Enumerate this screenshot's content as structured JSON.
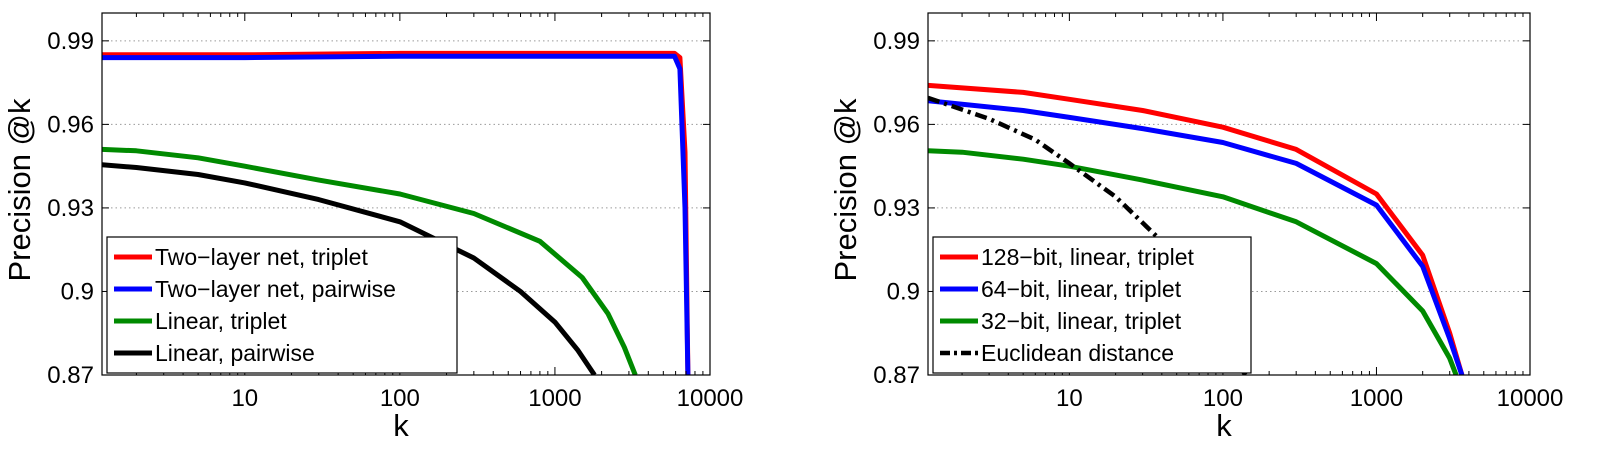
{
  "chart_data": [
    {
      "type": "line",
      "title": "",
      "xlabel": "k",
      "ylabel": "Precision @k",
      "xscale": "log",
      "xlim": [
        1.2,
        10000
      ],
      "ylim": [
        0.87,
        1.0
      ],
      "xticks": [
        10,
        100,
        1000,
        10000
      ],
      "xtick_labels": [
        "10",
        "100",
        "1000",
        "10000"
      ],
      "yticks": [
        0.87,
        0.9,
        0.93,
        0.96,
        0.99
      ],
      "ytick_labels": [
        "0.87",
        "0.9",
        "0.93",
        "0.96",
        "0.99"
      ],
      "grid": true,
      "legend_position": "bottom-left",
      "series": [
        {
          "name": "Two−layer net, triplet",
          "color": "#ff0000",
          "style": "solid",
          "x": [
            1.2,
            10,
            100,
            1000,
            5000,
            5900,
            6400,
            6900,
            7200
          ],
          "y": [
            0.985,
            0.985,
            0.9855,
            0.9855,
            0.9855,
            0.9855,
            0.984,
            0.95,
            0.87
          ]
        },
        {
          "name": "Two−layer net, pairwise",
          "color": "#0000ff",
          "style": "solid",
          "x": [
            1.2,
            10,
            100,
            1000,
            5000,
            5900,
            6400,
            6900,
            7200
          ],
          "y": [
            0.984,
            0.984,
            0.9845,
            0.9845,
            0.9845,
            0.9845,
            0.98,
            0.93,
            0.87
          ]
        },
        {
          "name": "Linear, triplet",
          "color": "#008a00",
          "style": "solid",
          "x": [
            1.2,
            2,
            5,
            10,
            30,
            100,
            300,
            800,
            1500,
            2200,
            2800,
            3300
          ],
          "y": [
            0.951,
            0.9505,
            0.948,
            0.945,
            0.94,
            0.935,
            0.928,
            0.918,
            0.905,
            0.892,
            0.88,
            0.87
          ]
        },
        {
          "name": "Linear, pairwise",
          "color": "#000000",
          "style": "solid",
          "x": [
            1.2,
            2,
            5,
            10,
            30,
            100,
            300,
            600,
            1000,
            1400,
            1800
          ],
          "y": [
            0.9455,
            0.9445,
            0.942,
            0.939,
            0.933,
            0.925,
            0.912,
            0.9,
            0.889,
            0.879,
            0.87
          ]
        }
      ]
    },
    {
      "type": "line",
      "title": "",
      "xlabel": "k",
      "ylabel": "Precision @k",
      "xscale": "log",
      "xlim": [
        1.2,
        10000
      ],
      "ylim": [
        0.87,
        1.0
      ],
      "xticks": [
        10,
        100,
        1000,
        10000
      ],
      "xtick_labels": [
        "10",
        "100",
        "1000",
        "10000"
      ],
      "yticks": [
        0.87,
        0.9,
        0.93,
        0.96,
        0.99
      ],
      "ytick_labels": [
        "0.87",
        "0.9",
        "0.93",
        "0.96",
        "0.99"
      ],
      "grid": true,
      "legend_position": "bottom-left",
      "series": [
        {
          "name": "128−bit, linear, triplet",
          "color": "#ff0000",
          "style": "solid",
          "x": [
            1.2,
            5,
            10,
            30,
            100,
            300,
            1000,
            2000,
            3000,
            3600
          ],
          "y": [
            0.974,
            0.9715,
            0.969,
            0.965,
            0.959,
            0.951,
            0.935,
            0.913,
            0.885,
            0.87
          ]
        },
        {
          "name": "64−bit, linear, triplet",
          "color": "#0000ff",
          "style": "solid",
          "x": [
            1.2,
            5,
            10,
            30,
            100,
            300,
            1000,
            2000,
            3000,
            3600
          ],
          "y": [
            0.9685,
            0.965,
            0.9625,
            0.9585,
            0.9535,
            0.946,
            0.931,
            0.909,
            0.883,
            0.87
          ]
        },
        {
          "name": "32−bit, linear, triplet",
          "color": "#008a00",
          "style": "solid",
          "x": [
            1.2,
            2,
            5,
            10,
            30,
            100,
            300,
            1000,
            2000,
            3000,
            3300
          ],
          "y": [
            0.9505,
            0.95,
            0.9475,
            0.945,
            0.94,
            0.934,
            0.925,
            0.91,
            0.893,
            0.876,
            0.87
          ]
        },
        {
          "name": "Euclidean distance",
          "color": "#000000",
          "style": "dashdot",
          "x": [
            1.2,
            3,
            6,
            10,
            20,
            40,
            70,
            100,
            140
          ],
          "y": [
            0.9695,
            0.962,
            0.9545,
            0.946,
            0.934,
            0.918,
            0.898,
            0.882,
            0.87
          ]
        }
      ]
    }
  ]
}
